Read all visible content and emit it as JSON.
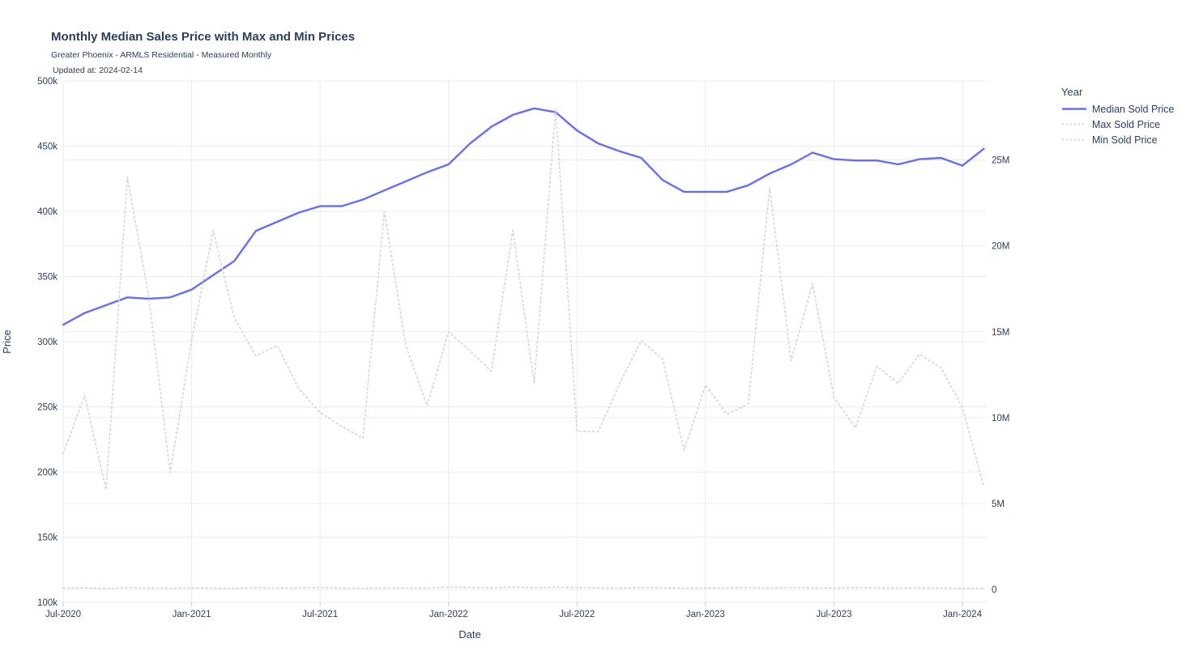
{
  "header": {
    "title": "Monthly Median Sales Price with Max and Min Prices",
    "subtitle": "Greater Phoenix - ARMLS Residential - Measured Monthly",
    "updated": "Updated at: 2024-02-14"
  },
  "legend": {
    "title": "Year",
    "entries": [
      {
        "label": "Median Sold Price",
        "style": "solid",
        "color": "#636efa"
      },
      {
        "label": "Max Sold Price",
        "style": "dotted",
        "color": "#d4d4d4"
      },
      {
        "label": "Min Sold Price",
        "style": "dotted",
        "color": "#d4d4d4"
      }
    ]
  },
  "colors": {
    "median_line": "#636efa",
    "dotted_line": "#d4d4d4",
    "grid": "#e8ebf3",
    "text": "#2a3f5f",
    "tick_nub": "#c7cdd9"
  },
  "chart_data": {
    "type": "line",
    "title": "Monthly Median Sales Price with Max and Min Prices",
    "subtitle": "Greater Phoenix - ARMLS Residential - Measured Monthly",
    "xlabel": "Date",
    "ylabel_left": "Price",
    "grid": true,
    "legend_position": "right",
    "categories": [
      "Jul-2020",
      "Aug-2020",
      "Sep-2020",
      "Oct-2020",
      "Nov-2020",
      "Dec-2020",
      "Jan-2021",
      "Feb-2021",
      "Mar-2021",
      "Apr-2021",
      "May-2021",
      "Jun-2021",
      "Jul-2021",
      "Aug-2021",
      "Sep-2021",
      "Oct-2021",
      "Nov-2021",
      "Dec-2021",
      "Jan-2022",
      "Feb-2022",
      "Mar-2022",
      "Apr-2022",
      "May-2022",
      "Jun-2022",
      "Jul-2022",
      "Aug-2022",
      "Sep-2022",
      "Oct-2022",
      "Nov-2022",
      "Dec-2022",
      "Jan-2023",
      "Feb-2023",
      "Mar-2023",
      "Apr-2023",
      "May-2023",
      "Jun-2023",
      "Jul-2023",
      "Aug-2023",
      "Sep-2023",
      "Oct-2023",
      "Nov-2023",
      "Dec-2023",
      "Jan-2024",
      "Feb-2024"
    ],
    "series": [
      {
        "name": "Median Sold Price",
        "axis": "left",
        "style": "solid",
        "color": "#636efa",
        "values": [
          313000,
          322000,
          328000,
          334000,
          333000,
          334000,
          340000,
          351000,
          362000,
          385000,
          392000,
          399000,
          404000,
          404000,
          409000,
          416000,
          423000,
          430000,
          436000,
          452000,
          465000,
          474000,
          479000,
          476000,
          462000,
          452000,
          446000,
          441000,
          424000,
          415000,
          415000,
          415000,
          420000,
          429000,
          436000,
          445000,
          440000,
          439000,
          439000,
          436000,
          440000,
          441000,
          435000,
          448000
        ]
      },
      {
        "name": "Max Sold Price",
        "axis": "right",
        "style": "dotted",
        "color": "#d4d4d4",
        "values": [
          7900000,
          11300000,
          5800000,
          24000000,
          17000000,
          6800000,
          14500000,
          20900000,
          15800000,
          13600000,
          14200000,
          11700000,
          10300000,
          9500000,
          8800000,
          22000000,
          14200000,
          10700000,
          15000000,
          13900000,
          12700000,
          20900000,
          12000000,
          28000000,
          9200000,
          9200000,
          12000000,
          14500000,
          13400000,
          8100000,
          11900000,
          10200000,
          10800000,
          23400000,
          13300000,
          17800000,
          11200000,
          9400000,
          13000000,
          12000000,
          13700000,
          12900000,
          10600000,
          6000000
        ]
      },
      {
        "name": "Min Sold Price",
        "axis": "right",
        "style": "dotted",
        "color": "#d4d4d4",
        "values": [
          80000,
          100000,
          50000,
          120000,
          90000,
          70000,
          100000,
          80000,
          60000,
          110000,
          90000,
          100000,
          120000,
          80000,
          70000,
          100000,
          90000,
          80000,
          150000,
          120000,
          100000,
          140000,
          110000,
          130000,
          120000,
          100000,
          90000,
          110000,
          100000,
          80000,
          90000,
          100000,
          110000,
          90000,
          120000,
          100000,
          90000,
          110000,
          100000,
          90000,
          100000,
          80000,
          70000,
          60000
        ]
      }
    ],
    "left_axis": {
      "title": "Price",
      "range": [
        100000,
        500000
      ],
      "tick_values": [
        100000,
        150000,
        200000,
        250000,
        300000,
        350000,
        400000,
        450000,
        500000
      ],
      "tick_labels": [
        "100k",
        "150k",
        "200k",
        "250k",
        "300k",
        "350k",
        "400k",
        "450k",
        "500k"
      ]
    },
    "right_axis": {
      "title": "",
      "range": [
        0,
        29600000
      ],
      "tick_values": [
        0,
        5000000,
        10000000,
        15000000,
        20000000,
        25000000
      ],
      "tick_labels": [
        "0",
        "5M",
        "10M",
        "15M",
        "20M",
        "25M"
      ]
    },
    "x_axis": {
      "title": "Date",
      "tick_month_indices": [
        0,
        6,
        12,
        18,
        24,
        30,
        36,
        42
      ],
      "tick_labels": [
        "Jul-2020",
        "Jan-2021",
        "Jul-2021",
        "Jan-2022",
        "Jul-2022",
        "Jan-2023",
        "Jul-2023",
        "Jan-2024"
      ]
    }
  }
}
